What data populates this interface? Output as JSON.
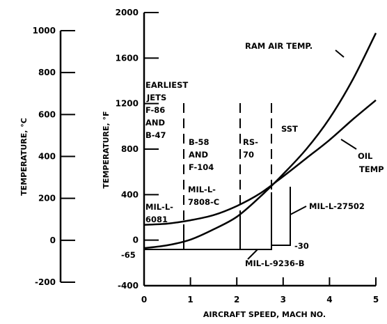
{
  "chart_data": {
    "type": "line",
    "x_axis": {
      "label": "AIRCRAFT SPEED, MACH NO.",
      "range": [
        0,
        5
      ],
      "ticks": [
        "0",
        "1",
        "2",
        "3",
        "4",
        "5"
      ]
    },
    "y_axis_f": {
      "label": "TEMPERATURE, °F",
      "range": [
        -400,
        2000
      ],
      "ticks": [
        "-400",
        "0",
        "400",
        "800",
        "1200",
        "1600",
        "2000"
      ]
    },
    "y_axis_c": {
      "label": "TEMPERATURE, °C",
      "range": [
        -200,
        1000
      ],
      "ticks": [
        "-200",
        "0",
        "200",
        "400",
        "600",
        "800",
        "1000"
      ]
    },
    "series": [
      {
        "name": "RAM AIR TEMP.",
        "x": [
          0,
          0.5,
          1,
          1.5,
          2,
          2.5,
          3,
          3.5,
          4,
          4.5,
          5
        ],
        "y": [
          -70,
          -45,
          5,
          95,
          205,
          380,
          580,
          800,
          1070,
          1410,
          1820
        ]
      },
      {
        "name": "OIL TEMP",
        "x": [
          0,
          0.5,
          1,
          1.5,
          2,
          2.5,
          3,
          3.5,
          4,
          4.5,
          5
        ],
        "y": [
          135,
          145,
          175,
          220,
          300,
          410,
          560,
          720,
          880,
          1060,
          1230
        ]
      }
    ],
    "eras": [
      {
        "label": "EARLIEST JETS F-86 AND B-47",
        "x_end": 0.9
      },
      {
        "label": "B-58 AND F-104",
        "x_start": 0.9,
        "x_end": 2.1
      },
      {
        "label": "RS-70",
        "x_start": 2.1,
        "x_end": 2.75
      },
      {
        "label": "SST",
        "x_start": 2.75,
        "x_end": 3.2
      }
    ],
    "spec_labels": {
      "mil_6081": [
        "MIL-L-",
        "6081"
      ],
      "mil_7808": [
        "MIL-L-",
        "7808-C"
      ],
      "mil_27502": "MIL-L-27502",
      "mil_9236": "MIL-L-9236-B",
      "val_neg65": "-65",
      "val_neg30": "-30"
    },
    "era_text": {
      "earliest": [
        "EARLIEST",
        "JETS",
        "F-86",
        "AND",
        "B-47"
      ],
      "b58": [
        "B-58",
        "AND",
        "F-104"
      ],
      "rs70": [
        "RS-",
        "70"
      ],
      "sst": "SST"
    },
    "curve_labels": {
      "ram": "RAM AIR TEMP.",
      "oil": [
        "OIL",
        "TEMP"
      ]
    }
  }
}
